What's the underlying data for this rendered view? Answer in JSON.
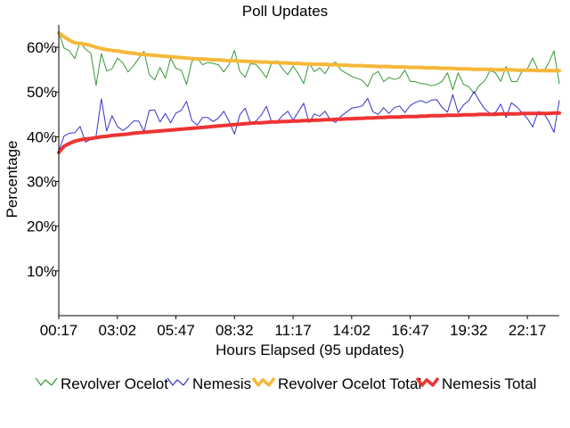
{
  "chart_data": {
    "type": "line",
    "title": "Poll Updates",
    "xlabel": "Hours Elapsed (95 updates)",
    "ylabel": "Percentage",
    "ylim": [
      0,
      65
    ],
    "y_ticks": [
      10,
      20,
      30,
      40,
      50,
      60
    ],
    "y_tick_labels": [
      "10%",
      "20%",
      "30%",
      "40%",
      "50%",
      "60%"
    ],
    "x_tick_labels": [
      "00:17",
      "03:02",
      "05:47",
      "08:32",
      "11:17",
      "14:02",
      "16:47",
      "19:32",
      "22:17"
    ],
    "x_tick_indices": [
      0,
      11,
      22,
      33,
      44,
      55,
      66,
      77,
      88
    ],
    "grid": false,
    "legend_position": "bottom",
    "series": [
      {
        "name": "Revolver Ocelot",
        "color": "#339933",
        "values": [
          63.2,
          59.8,
          59.2,
          57.5,
          61.2,
          59.6,
          58.7,
          51.5,
          58.6,
          54.7,
          55.2,
          57.6,
          56.6,
          54.5,
          55.8,
          57.5,
          59.1,
          53.9,
          52.7,
          55.5,
          53.1,
          57.6,
          55.3,
          54.9,
          51.7,
          56.9,
          57.6,
          56.1,
          56.6,
          56.4,
          56.1,
          54.5,
          56.2,
          59.3,
          54.6,
          53.3,
          56.3,
          56.2,
          54.8,
          53.2,
          56.6,
          57.0,
          55.2,
          53.9,
          55.8,
          54.1,
          51.9,
          56.5,
          54.6,
          55.4,
          54.1,
          56.1,
          56.7,
          54.9,
          54.2,
          53.5,
          53.1,
          52.6,
          51.2,
          53.9,
          54.6,
          52.3,
          53.3,
          52.8,
          53.2,
          54.9,
          52.4,
          52.3,
          51.9,
          51.8,
          51.4,
          51.7,
          52.4,
          54.3,
          50.5,
          54.3,
          51.7,
          51.2,
          49.7,
          51.5,
          52.5,
          54.8,
          54.3,
          52.4,
          55.7,
          52.4,
          52.3,
          54.6,
          55.2,
          57.6,
          54.9,
          54.5,
          56.5,
          59.2,
          51.9
        ]
      },
      {
        "name": "Nemesis",
        "color": "#3333cc",
        "values": [
          36.8,
          40.2,
          40.8,
          40.9,
          42.3,
          38.8,
          39.4,
          40.2,
          48.5,
          41.3,
          44.7,
          42.3,
          41.4,
          42.2,
          43.5,
          43.5,
          41.2,
          45.9,
          46.0,
          43.3,
          45.2,
          43.1,
          45.3,
          45.9,
          47.9,
          43.6,
          42.6,
          44.3,
          44.3,
          43.4,
          44.2,
          45.7,
          43.4,
          40.6,
          44.9,
          46.4,
          43.1,
          43.5,
          44.8,
          46.8,
          43.2,
          43.3,
          44.7,
          45.7,
          43.7,
          45.6,
          47.5,
          43.2,
          45.1,
          44.6,
          45.7,
          43.8,
          43.2,
          44.6,
          45.5,
          46.4,
          46.6,
          46.9,
          48.6,
          45.6,
          45.0,
          46.5,
          45.2,
          46.5,
          46.9,
          45.4,
          47.0,
          47.7,
          48.1,
          47.6,
          48.2,
          48.3,
          46.5,
          45.5,
          49.4,
          45.4,
          47.1,
          48.1,
          50.1,
          48.0,
          46.2,
          45.2,
          45.4,
          47.3,
          44.3,
          47.6,
          46.7,
          45.4,
          44.1,
          42.2,
          45.6,
          45.4,
          43.5,
          41.0,
          48.1
        ]
      },
      {
        "name": "Revolver Ocelot Total",
        "color": "#f5b83a",
        "values": [
          63.2,
          62.3,
          61.6,
          61.0,
          60.9,
          60.7,
          60.4,
          60.0,
          59.7,
          59.5,
          59.3,
          59.2,
          59.0,
          58.8,
          58.7,
          58.5,
          58.4,
          58.3,
          58.2,
          58.1,
          58.0,
          57.9,
          57.8,
          57.7,
          57.6,
          57.5,
          57.4,
          57.4,
          57.3,
          57.2,
          57.2,
          57.1,
          57.0,
          57.0,
          56.9,
          56.9,
          56.8,
          56.8,
          56.7,
          56.7,
          56.6,
          56.6,
          56.5,
          56.5,
          56.4,
          56.4,
          56.3,
          56.3,
          56.2,
          56.2,
          56.2,
          56.1,
          56.1,
          56.0,
          56.0,
          55.9,
          55.9,
          55.9,
          55.8,
          55.8,
          55.7,
          55.7,
          55.7,
          55.6,
          55.6,
          55.6,
          55.5,
          55.5,
          55.5,
          55.4,
          55.4,
          55.4,
          55.3,
          55.3,
          55.3,
          55.2,
          55.2,
          55.2,
          55.1,
          55.1,
          55.1,
          55.1,
          55.0,
          55.0,
          55.0,
          55.0,
          54.9,
          54.9,
          54.9,
          54.9,
          54.8,
          54.8,
          54.8,
          54.8,
          54.8
        ]
      },
      {
        "name": "Nemesis Total",
        "color": "#ee3333",
        "values": [
          36.5,
          37.9,
          38.5,
          39.0,
          39.3,
          39.5,
          39.6,
          39.8,
          40.0,
          40.1,
          40.3,
          40.4,
          40.5,
          40.6,
          40.8,
          40.9,
          41.0,
          41.1,
          41.2,
          41.3,
          41.4,
          41.5,
          41.6,
          41.7,
          41.8,
          41.9,
          42.0,
          42.1,
          42.2,
          42.3,
          42.4,
          42.5,
          42.6,
          42.7,
          42.8,
          42.9,
          43.0,
          43.1,
          43.1,
          43.2,
          43.3,
          43.3,
          43.4,
          43.4,
          43.5,
          43.5,
          43.6,
          43.6,
          43.7,
          43.7,
          43.8,
          43.8,
          43.9,
          43.9,
          44.0,
          44.0,
          44.1,
          44.1,
          44.2,
          44.2,
          44.3,
          44.3,
          44.4,
          44.4,
          44.4,
          44.5,
          44.5,
          44.5,
          44.6,
          44.6,
          44.7,
          44.7,
          44.7,
          44.8,
          44.8,
          44.8,
          44.9,
          44.9,
          44.9,
          45.0,
          45.0,
          45.0,
          45.0,
          45.1,
          45.1,
          45.1,
          45.1,
          45.2,
          45.2,
          45.2,
          45.2,
          45.2,
          45.2,
          45.3,
          45.3
        ]
      }
    ]
  }
}
